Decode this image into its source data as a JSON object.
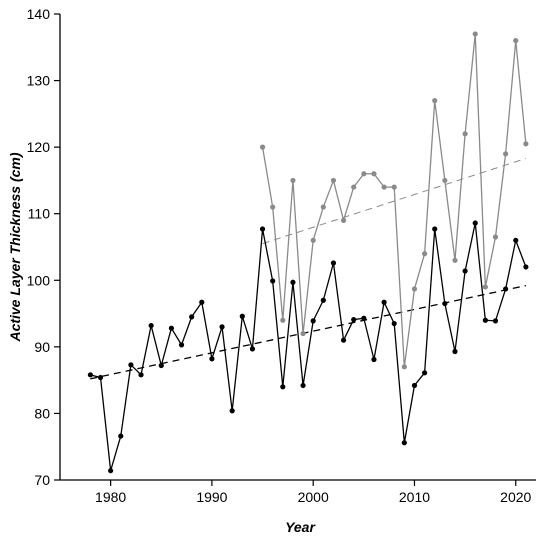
{
  "chart_data": {
    "type": "line",
    "title": "",
    "xlabel": "Year",
    "ylabel": "Active Layer Thickness (cm)",
    "xlim": [
      1975,
      2022
    ],
    "ylim": [
      70,
      140
    ],
    "x_ticks": [
      1980,
      1990,
      2000,
      2010,
      2020
    ],
    "y_ticks": [
      70,
      80,
      90,
      100,
      110,
      120,
      130,
      140
    ],
    "grid": false,
    "legend": "none",
    "series": [
      {
        "color": "#000000",
        "style": "line-with-points",
        "x": [
          1978,
          1979,
          1980,
          1981,
          1982,
          1983,
          1984,
          1985,
          1986,
          1987,
          1988,
          1989,
          1990,
          1991,
          1992,
          1993,
          1994,
          1995,
          1996,
          1997,
          1998,
          1999,
          2000,
          2001,
          2002,
          2003,
          2004,
          2005,
          2006,
          2007,
          2008,
          2009,
          2010,
          2011,
          2012,
          2013,
          2014,
          2015,
          2016,
          2017,
          2018,
          2019,
          2020,
          2021
        ],
        "y": [
          85.8,
          85.4,
          71.4,
          76.6,
          87.3,
          85.8,
          93.2,
          87.2,
          92.8,
          90.3,
          94.5,
          96.7,
          88.2,
          93.0,
          80.4,
          94.6,
          89.7,
          107.7,
          99.9,
          84.0,
          99.7,
          84.2,
          93.9,
          97.0,
          102.6,
          91.0,
          94.1,
          94.3,
          88.1,
          96.7,
          93.5,
          75.6,
          84.2,
          86.1,
          107.7,
          96.5,
          89.3,
          101.4,
          108.6,
          94.0,
          93.9,
          98.7,
          106.0,
          102.0
        ]
      },
      {
        "color": "#8a8a8a",
        "style": "line-with-points",
        "x": [
          1995,
          1996,
          1997,
          1998,
          1999,
          2000,
          2001,
          2002,
          2003,
          2004,
          2005,
          2006,
          2007,
          2008,
          2009,
          2010,
          2011,
          2012,
          2013,
          2014,
          2015,
          2016,
          2017,
          2018,
          2019,
          2020,
          2021
        ],
        "y": [
          120.0,
          111.0,
          94.0,
          115.0,
          92.0,
          106.0,
          111.0,
          115.0,
          109.0,
          114.0,
          116.0,
          116.0,
          114.0,
          114.0,
          87.0,
          98.7,
          104.0,
          127.0,
          115.0,
          103.0,
          122.0,
          137.0,
          99.0,
          106.5,
          119.0,
          136.0,
          120.5
        ]
      }
    ],
    "trendlines": [
      {
        "color": "#000000",
        "dash": "dashed",
        "x": [
          1978,
          2021
        ],
        "y": [
          85.2,
          99.2
        ]
      },
      {
        "color": "#8a8a8a",
        "dash": "dashed",
        "x": [
          1995,
          2021
        ],
        "y": [
          105.5,
          118.3
        ]
      }
    ]
  }
}
